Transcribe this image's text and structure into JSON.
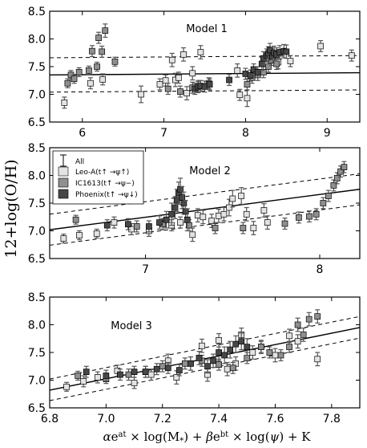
{
  "figure": {
    "ylabel": "12+log(O/H)",
    "xlabel": "αe^at × log(M*) + βe^bt × log(ψ) + K"
  },
  "legend": {
    "entries": [
      {
        "label": "All",
        "marker": "errorbar",
        "color": "#000000"
      },
      {
        "label": "Leo-A(t↑ →ψ↑)",
        "marker": "square",
        "color": "#e3e3e3"
      },
      {
        "label": "IC1613(t↑ →ψ−)",
        "marker": "square",
        "color": "#8f8f8f"
      },
      {
        "label": "Phoenix(t↑ →ψ↓)",
        "marker": "square",
        "color": "#474747"
      }
    ]
  },
  "chart_data": [
    {
      "type": "scatter",
      "title": "Model 1",
      "xlim": [
        5.6,
        9.4
      ],
      "ylim": [
        6.5,
        8.5
      ],
      "xticks": [
        "6",
        "7",
        "8",
        "9"
      ],
      "yticks": [
        "6.5",
        "7.0",
        "7.5",
        "8.0",
        "8.5"
      ],
      "fit": {
        "x": [
          5.6,
          9.4
        ],
        "y": [
          7.35,
          7.39
        ]
      },
      "band_upper": {
        "x": [
          5.6,
          9.4
        ],
        "y": [
          7.66,
          7.7
        ]
      },
      "band_lower": {
        "x": [
          5.6,
          9.4
        ],
        "y": [
          7.04,
          7.08
        ]
      },
      "series": [
        {
          "name": "Leo-A(t↑ →ψ↑)",
          "color": "#e3e3e3",
          "x": [
            5.78,
            6.1,
            6.25,
            6.72,
            6.95,
            7.02,
            7.1,
            7.14,
            7.18,
            7.24,
            7.28,
            7.35,
            7.45,
            7.9,
            7.93,
            8.02,
            8.4,
            8.55,
            8.92,
            9.3
          ],
          "y": [
            6.85,
            7.2,
            7.27,
            7.0,
            7.18,
            7.25,
            7.62,
            7.26,
            7.3,
            7.72,
            7.02,
            7.38,
            7.76,
            7.43,
            6.99,
            6.93,
            7.58,
            7.6,
            7.87,
            7.7
          ],
          "err": [
            0.1,
            0.1,
            0.1,
            0.15,
            0.1,
            0.1,
            0.12,
            0.12,
            0.1,
            0.12,
            0.12,
            0.12,
            0.12,
            0.12,
            0.1,
            0.15,
            0.12,
            0.1,
            0.1,
            0.1
          ]
        },
        {
          "name": "IC1613(t↑ →ψ−)",
          "color": "#8f8f8f",
          "x": [
            5.82,
            5.86,
            5.9,
            5.96,
            6.08,
            6.12,
            6.18,
            6.2,
            6.24,
            6.28,
            6.4,
            7.05,
            7.2,
            7.35,
            7.42,
            7.55,
            8.02,
            8.08,
            8.15,
            8.22,
            8.28,
            8.32,
            8.38
          ],
          "y": [
            7.2,
            7.35,
            7.28,
            7.4,
            7.43,
            7.78,
            7.5,
            8.02,
            7.77,
            8.15,
            7.59,
            7.1,
            7.05,
            7.12,
            7.15,
            7.2,
            7.18,
            7.3,
            7.35,
            7.4,
            7.5,
            7.62,
            7.55
          ],
          "err": [
            0.08,
            0.08,
            0.08,
            0.08,
            0.08,
            0.1,
            0.08,
            0.1,
            0.1,
            0.12,
            0.08,
            0.1,
            0.1,
            0.1,
            0.1,
            0.1,
            0.1,
            0.1,
            0.1,
            0.1,
            0.1,
            0.1,
            0.1
          ]
        },
        {
          "name": "Phoenix(t↑ →ψ↓)",
          "color": "#474747",
          "x": [
            7.38,
            7.42,
            7.45,
            7.5,
            7.56,
            7.8,
            8.0,
            8.06,
            8.1,
            8.15,
            8.2,
            8.22,
            8.26,
            8.28,
            8.3,
            8.33,
            8.35,
            8.38,
            8.42,
            8.47,
            8.5
          ],
          "y": [
            7.1,
            7.13,
            7.15,
            7.14,
            7.18,
            7.26,
            7.37,
            7.34,
            7.45,
            7.4,
            7.55,
            7.65,
            7.7,
            7.74,
            7.8,
            7.68,
            7.75,
            7.72,
            7.76,
            7.78,
            7.77
          ],
          "err": [
            0.1,
            0.1,
            0.1,
            0.1,
            0.1,
            0.1,
            0.1,
            0.1,
            0.1,
            0.1,
            0.12,
            0.12,
            0.12,
            0.12,
            0.12,
            0.12,
            0.12,
            0.12,
            0.12,
            0.12,
            0.12
          ]
        }
      ]
    },
    {
      "type": "scatter",
      "title": "Model 2",
      "xlim": [
        6.45,
        8.23
      ],
      "ylim": [
        6.5,
        8.5
      ],
      "xticks": [
        "7",
        "8"
      ],
      "yticks": [
        "6.5",
        "7.0",
        "7.5",
        "8.0",
        "8.5"
      ],
      "fit": {
        "x": [
          6.45,
          8.23
        ],
        "y": [
          7.02,
          7.75
        ]
      },
      "band_upper": {
        "x": [
          6.45,
          8.23
        ],
        "y": [
          7.3,
          8.03
        ]
      },
      "band_lower": {
        "x": [
          6.45,
          8.23
        ],
        "y": [
          6.74,
          7.47
        ]
      },
      "series": [
        {
          "name": "Leo-A(t↑ →ψ↑)",
          "color": "#e3e3e3",
          "x": [
            6.53,
            6.62,
            6.72,
            6.82,
            6.92,
            7.02,
            7.1,
            7.15,
            7.2,
            7.27,
            7.3,
            7.33,
            7.38,
            7.42,
            7.45,
            7.48,
            7.5,
            7.55,
            7.58,
            7.62,
            7.68,
            7.7
          ],
          "y": [
            6.86,
            6.92,
            6.95,
            7.15,
            7.03,
            7.0,
            7.12,
            7.1,
            7.15,
            6.93,
            7.28,
            7.25,
            7.18,
            7.27,
            7.3,
            7.42,
            7.58,
            7.63,
            7.3,
            7.05,
            7.37,
            7.15
          ],
          "err": [
            0.08,
            0.08,
            0.08,
            0.1,
            0.1,
            0.1,
            0.1,
            0.1,
            0.1,
            0.12,
            0.12,
            0.12,
            0.12,
            0.12,
            0.12,
            0.15,
            0.15,
            0.15,
            0.12,
            0.12,
            0.12,
            0.12
          ]
        },
        {
          "name": "IC1613(t↑ →ψ−)",
          "color": "#8f8f8f",
          "x": [
            6.6,
            6.95,
            7.1,
            7.25,
            7.4,
            7.56,
            7.8,
            7.88,
            7.94,
            7.98,
            8.02,
            8.05,
            8.08,
            8.1,
            8.12,
            8.14
          ],
          "y": [
            7.2,
            7.08,
            7.12,
            7.1,
            7.05,
            7.05,
            7.13,
            7.24,
            7.26,
            7.3,
            7.5,
            7.63,
            7.82,
            7.95,
            8.07,
            8.15
          ],
          "err": [
            0.08,
            0.1,
            0.1,
            0.1,
            0.1,
            0.1,
            0.1,
            0.1,
            0.1,
            0.1,
            0.1,
            0.1,
            0.1,
            0.1,
            0.1,
            0.1
          ]
        },
        {
          "name": "Phoenix(t↑ →ψ↓)",
          "color": "#474747",
          "x": [
            6.78,
            6.9,
            7.02,
            7.08,
            7.12,
            7.15,
            7.17,
            7.18,
            7.19,
            7.2,
            7.21,
            7.22,
            7.23,
            7.24
          ],
          "y": [
            7.1,
            7.12,
            7.08,
            7.15,
            7.2,
            7.3,
            7.42,
            7.55,
            7.68,
            7.75,
            7.6,
            7.5,
            7.35,
            7.2
          ],
          "err": [
            0.1,
            0.1,
            0.1,
            0.12,
            0.15,
            0.2,
            0.2,
            0.2,
            0.2,
            0.2,
            0.2,
            0.2,
            0.2,
            0.2
          ]
        }
      ]
    },
    {
      "type": "scatter",
      "title": "Model 3",
      "xlim": [
        6.8,
        7.9
      ],
      "ylim": [
        6.5,
        8.5
      ],
      "xticks": [
        "6.8",
        "7.0",
        "7.2",
        "7.4",
        "7.6",
        "7.8"
      ],
      "yticks": [
        "6.5",
        "7.0",
        "7.5",
        "8.0",
        "8.5"
      ],
      "fit": {
        "x": [
          6.8,
          7.9
        ],
        "y": [
          6.82,
          7.95
        ]
      },
      "band_upper": {
        "x": [
          6.8,
          7.9
        ],
        "y": [
          7.02,
          8.15
        ]
      },
      "band_lower": {
        "x": [
          6.8,
          7.9
        ],
        "y": [
          6.63,
          7.76
        ]
      },
      "series": [
        {
          "name": "Leo-A(t↑ →ψ↑)",
          "color": "#e3e3e3",
          "x": [
            6.86,
            6.92,
            6.97,
            7.04,
            7.1,
            7.16,
            7.22,
            7.25,
            7.3,
            7.34,
            7.36,
            7.4,
            7.43,
            7.46,
            7.48,
            7.52,
            7.55,
            7.6,
            7.65,
            7.68,
            7.75
          ],
          "y": [
            6.88,
            6.98,
            7.05,
            7.17,
            6.95,
            7.1,
            7.35,
            7.05,
            7.3,
            7.62,
            7.1,
            7.72,
            7.2,
            7.3,
            7.82,
            7.5,
            7.6,
            7.45,
            7.8,
            7.7,
            7.38
          ],
          "err": [
            0.08,
            0.1,
            0.1,
            0.1,
            0.1,
            0.1,
            0.12,
            0.12,
            0.12,
            0.12,
            0.12,
            0.12,
            0.12,
            0.12,
            0.12,
            0.12,
            0.12,
            0.12,
            0.12,
            0.12,
            0.12
          ]
        },
        {
          "name": "IC1613(t↑ →ψ−)",
          "color": "#8f8f8f",
          "x": [
            6.9,
            7.0,
            7.08,
            7.14,
            7.2,
            7.28,
            7.34,
            7.4,
            7.45,
            7.5,
            7.55,
            7.58,
            7.62,
            7.65,
            7.68,
            7.7,
            7.72,
            7.75
          ],
          "y": [
            7.08,
            7.02,
            7.1,
            7.15,
            7.25,
            7.3,
            7.35,
            7.28,
            7.22,
            7.4,
            7.6,
            7.5,
            7.45,
            7.6,
            8.0,
            7.82,
            8.1,
            8.15
          ],
          "err": [
            0.08,
            0.08,
            0.1,
            0.1,
            0.1,
            0.1,
            0.1,
            0.1,
            0.1,
            0.1,
            0.1,
            0.1,
            0.1,
            0.1,
            0.12,
            0.12,
            0.12,
            0.12
          ]
        },
        {
          "name": "Phoenix(t↑ →ψ↓)",
          "color": "#474747",
          "x": [
            6.93,
            7.0,
            7.05,
            7.1,
            7.14,
            7.18,
            7.22,
            7.26,
            7.3,
            7.33,
            7.36,
            7.38,
            7.4,
            7.42,
            7.44,
            7.46,
            7.48,
            7.5
          ],
          "y": [
            7.15,
            7.08,
            7.1,
            7.15,
            7.15,
            7.2,
            7.22,
            7.18,
            7.3,
            7.4,
            7.25,
            7.35,
            7.5,
            7.45,
            7.55,
            7.65,
            7.7,
            7.6
          ],
          "err": [
            0.1,
            0.1,
            0.1,
            0.1,
            0.1,
            0.1,
            0.1,
            0.1,
            0.12,
            0.12,
            0.12,
            0.12,
            0.15,
            0.15,
            0.15,
            0.15,
            0.15,
            0.15
          ]
        }
      ]
    }
  ]
}
